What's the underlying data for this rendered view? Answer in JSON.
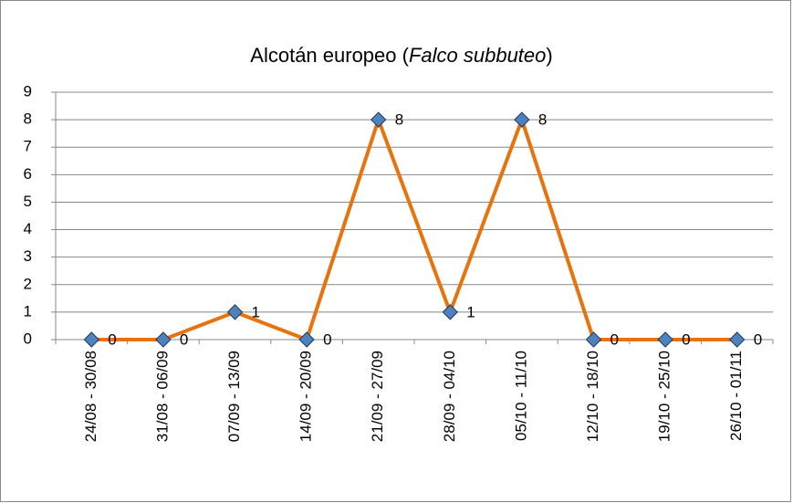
{
  "chart_data": {
    "type": "line",
    "title": [
      {
        "text": "Alcotán europeo ("
      },
      {
        "text": "Falco subbuteo",
        "italic": true
      },
      {
        "text": ")"
      }
    ],
    "categories": [
      "24/08 - 30/08",
      "31/08 - 06/09",
      "07/09 - 13/09",
      "14/09 - 20/09",
      "21/09 - 27/09",
      "28/09 - 04/10",
      "05/10 - 11/10",
      "12/10 - 18/10",
      "19/10 - 25/10",
      "26/10 - 01/11"
    ],
    "series": [
      {
        "color": "#e8720c",
        "marker_color": "#4f81bd",
        "values": [
          0,
          0,
          1,
          0,
          8,
          1,
          8,
          0,
          0,
          0
        ]
      }
    ],
    "ylim": [
      0,
      9
    ],
    "yticks": [
      0,
      1,
      2,
      3,
      4,
      5,
      6,
      7,
      8,
      9
    ],
    "grid": true,
    "data_labels": true
  }
}
